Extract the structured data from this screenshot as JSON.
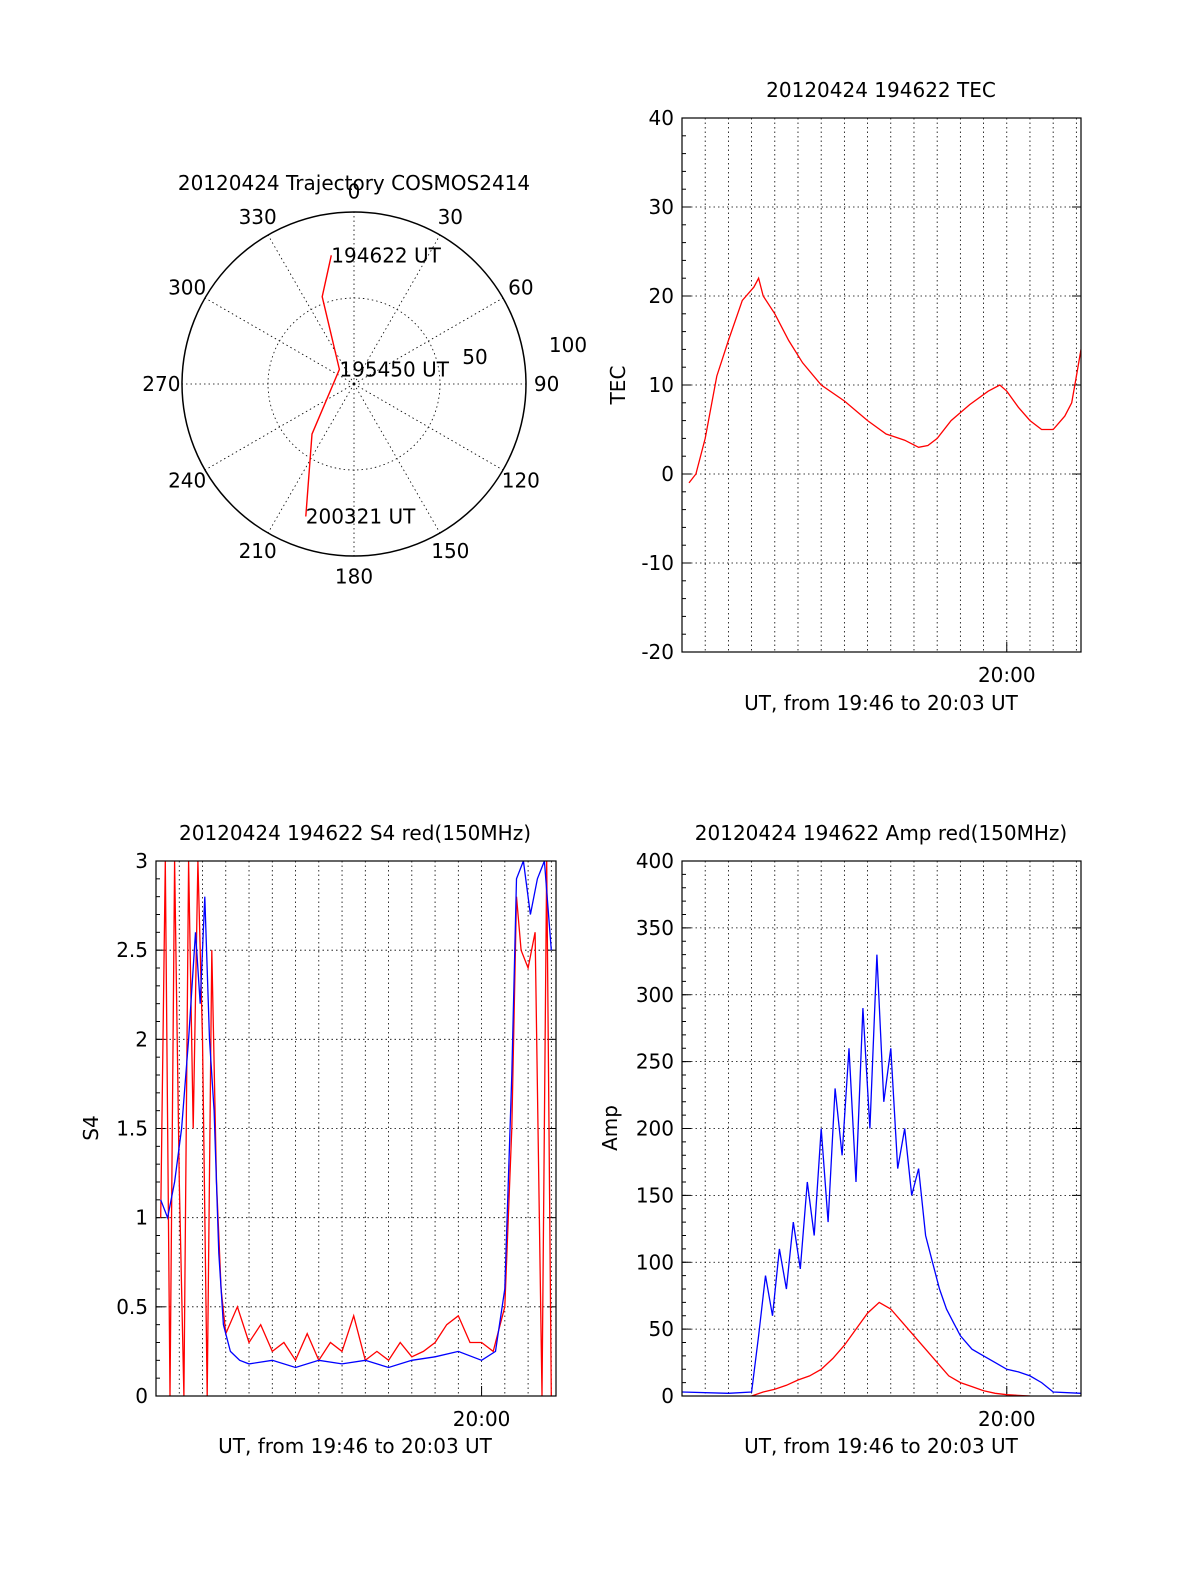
{
  "chart_data": [
    {
      "id": "trajectory",
      "type": "polar",
      "title": "20120424 Trajectory COSMOS2414",
      "azimuth_labels": [
        "0",
        "30",
        "60",
        "90",
        "120",
        "150",
        "180",
        "210",
        "240",
        "270",
        "300",
        "330"
      ],
      "radial_labels": [
        "50",
        "100"
      ],
      "series": [
        {
          "color": "#ff0000",
          "points": [
            [
              -10,
              76
            ],
            [
              -20,
              54
            ],
            [
              -45,
              12
            ],
            [
              -140,
              38
            ],
            [
              -160,
              82
            ]
          ]
        }
      ],
      "annotations": [
        {
          "text": "194622 UT",
          "az": -10,
          "zen": 76
        },
        {
          "text": "195450 UT",
          "az": -45,
          "zen": 12
        },
        {
          "text": "200321 UT",
          "az": -160,
          "zen": 82
        }
      ]
    },
    {
      "id": "tec",
      "type": "line",
      "title": "20120424 194622 TEC",
      "xlabel": "UT, from 19:46 to 20:03 UT",
      "ylabel": "TEC",
      "xlim": [
        0,
        17.2
      ],
      "ylim": [
        -20,
        40
      ],
      "yticks": [
        -20,
        -10,
        0,
        10,
        20,
        30,
        40
      ],
      "xtick_labels": [
        {
          "x": 14,
          "label": "20:00"
        }
      ],
      "series": [
        {
          "color": "#ff0000",
          "points": [
            [
              0.3,
              -1
            ],
            [
              0.6,
              0
            ],
            [
              1.0,
              4
            ],
            [
              1.5,
              11
            ],
            [
              2.0,
              15
            ],
            [
              2.6,
              19.5
            ],
            [
              3.1,
              21
            ],
            [
              3.3,
              22
            ],
            [
              3.5,
              20
            ],
            [
              4.0,
              18
            ],
            [
              4.6,
              15
            ],
            [
              5.2,
              12.5
            ],
            [
              6.0,
              10
            ],
            [
              7.0,
              8.2
            ],
            [
              8.0,
              6
            ],
            [
              8.8,
              4.5
            ],
            [
              9.6,
              3.8
            ],
            [
              10.2,
              3
            ],
            [
              10.6,
              3.2
            ],
            [
              11.0,
              4
            ],
            [
              11.6,
              6
            ],
            [
              12.4,
              7.8
            ],
            [
              13.2,
              9.3
            ],
            [
              13.7,
              10
            ],
            [
              14.0,
              9.3
            ],
            [
              14.5,
              7.5
            ],
            [
              15.0,
              6
            ],
            [
              15.5,
              5
            ],
            [
              16.0,
              5
            ],
            [
              16.5,
              6.5
            ],
            [
              16.8,
              8
            ],
            [
              17.0,
              11
            ],
            [
              17.2,
              14
            ]
          ]
        }
      ]
    },
    {
      "id": "s4",
      "type": "line",
      "title": "20120424 194622 S4 red(150MHz)",
      "xlabel": "UT, from 19:46 to 20:03 UT",
      "ylabel": "S4",
      "xlim": [
        0,
        17.2
      ],
      "ylim": [
        0,
        3
      ],
      "yticks": [
        0,
        0.5,
        1,
        1.5,
        2,
        2.5,
        3
      ],
      "xtick_labels": [
        {
          "x": 14,
          "label": "20:00"
        }
      ],
      "series": [
        {
          "color": "#ff0000",
          "points": [
            [
              0.2,
              1.0
            ],
            [
              0.4,
              3
            ],
            [
              0.6,
              0
            ],
            [
              0.8,
              3
            ],
            [
              1.0,
              1.2
            ],
            [
              1.2,
              0
            ],
            [
              1.4,
              3
            ],
            [
              1.6,
              1.5
            ],
            [
              1.8,
              3
            ],
            [
              2.0,
              2.0
            ],
            [
              2.2,
              0
            ],
            [
              2.4,
              2.5
            ],
            [
              2.6,
              1.2
            ],
            [
              2.8,
              0.6
            ],
            [
              3.0,
              0.35
            ],
            [
              3.5,
              0.5
            ],
            [
              4.0,
              0.3
            ],
            [
              4.5,
              0.4
            ],
            [
              5.0,
              0.25
            ],
            [
              5.5,
              0.3
            ],
            [
              6.0,
              0.2
            ],
            [
              6.5,
              0.35
            ],
            [
              7.0,
              0.2
            ],
            [
              7.5,
              0.3
            ],
            [
              8.0,
              0.25
            ],
            [
              8.5,
              0.45
            ],
            [
              9.0,
              0.2
            ],
            [
              9.5,
              0.25
            ],
            [
              10.0,
              0.2
            ],
            [
              10.5,
              0.3
            ],
            [
              11.0,
              0.22
            ],
            [
              11.5,
              0.25
            ],
            [
              12.0,
              0.3
            ],
            [
              12.5,
              0.4
            ],
            [
              13.0,
              0.45
            ],
            [
              13.5,
              0.3
            ],
            [
              14.0,
              0.3
            ],
            [
              14.5,
              0.25
            ],
            [
              15.0,
              0.5
            ],
            [
              15.3,
              1.5
            ],
            [
              15.5,
              2.8
            ],
            [
              15.7,
              2.5
            ],
            [
              16.0,
              2.4
            ],
            [
              16.3,
              2.6
            ],
            [
              16.6,
              0
            ],
            [
              16.8,
              3
            ],
            [
              17.0,
              0
            ]
          ]
        },
        {
          "color": "#0000ff",
          "points": [
            [
              0.2,
              1.1
            ],
            [
              0.5,
              1.0
            ],
            [
              0.8,
              1.2
            ],
            [
              1.1,
              1.5
            ],
            [
              1.4,
              2.0
            ],
            [
              1.7,
              2.6
            ],
            [
              1.9,
              2.2
            ],
            [
              2.1,
              2.8
            ],
            [
              2.3,
              2.0
            ],
            [
              2.5,
              1.6
            ],
            [
              2.7,
              0.8
            ],
            [
              2.9,
              0.4
            ],
            [
              3.2,
              0.25
            ],
            [
              3.6,
              0.2
            ],
            [
              4.0,
              0.18
            ],
            [
              5.0,
              0.2
            ],
            [
              6.0,
              0.16
            ],
            [
              7.0,
              0.2
            ],
            [
              8.0,
              0.18
            ],
            [
              9.0,
              0.2
            ],
            [
              10.0,
              0.16
            ],
            [
              11.0,
              0.2
            ],
            [
              12.0,
              0.22
            ],
            [
              13.0,
              0.25
            ],
            [
              14.0,
              0.2
            ],
            [
              14.6,
              0.25
            ],
            [
              15.0,
              0.6
            ],
            [
              15.3,
              1.8
            ],
            [
              15.5,
              2.9
            ],
            [
              15.8,
              3
            ],
            [
              16.1,
              2.7
            ],
            [
              16.4,
              2.9
            ],
            [
              16.7,
              3
            ],
            [
              17.0,
              2.5
            ]
          ]
        }
      ]
    },
    {
      "id": "amp",
      "type": "line",
      "title": "20120424 194622 Amp red(150MHz)",
      "xlabel": "UT, from 19:46 to 20:03 UT",
      "ylabel": "Amp",
      "xlim": [
        0,
        17.2
      ],
      "ylim": [
        0,
        400
      ],
      "yticks": [
        0,
        50,
        100,
        150,
        200,
        250,
        300,
        350,
        400
      ],
      "xtick_labels": [
        {
          "x": 14,
          "label": "20:00"
        }
      ],
      "series": [
        {
          "color": "#0000ff",
          "points": [
            [
              0.0,
              3
            ],
            [
              2.0,
              2
            ],
            [
              3.0,
              3
            ],
            [
              3.3,
              45
            ],
            [
              3.6,
              90
            ],
            [
              3.9,
              60
            ],
            [
              4.2,
              110
            ],
            [
              4.5,
              80
            ],
            [
              4.8,
              130
            ],
            [
              5.1,
              95
            ],
            [
              5.4,
              160
            ],
            [
              5.7,
              120
            ],
            [
              6.0,
              200
            ],
            [
              6.3,
              130
            ],
            [
              6.6,
              230
            ],
            [
              6.9,
              180
            ],
            [
              7.2,
              260
            ],
            [
              7.5,
              160
            ],
            [
              7.8,
              290
            ],
            [
              8.1,
              200
            ],
            [
              8.4,
              330
            ],
            [
              8.7,
              220
            ],
            [
              9.0,
              260
            ],
            [
              9.3,
              170
            ],
            [
              9.6,
              200
            ],
            [
              9.9,
              150
            ],
            [
              10.2,
              170
            ],
            [
              10.5,
              120
            ],
            [
              10.8,
              100
            ],
            [
              11.1,
              80
            ],
            [
              11.4,
              65
            ],
            [
              11.7,
              55
            ],
            [
              12.0,
              45
            ],
            [
              12.5,
              35
            ],
            [
              13.0,
              30
            ],
            [
              13.5,
              25
            ],
            [
              14.0,
              20
            ],
            [
              14.5,
              18
            ],
            [
              15.0,
              15
            ],
            [
              15.5,
              10
            ],
            [
              16.0,
              3
            ],
            [
              17.2,
              2
            ]
          ]
        },
        {
          "color": "#ff0000",
          "points": [
            [
              3.0,
              0
            ],
            [
              3.5,
              3
            ],
            [
              4.0,
              5
            ],
            [
              4.5,
              8
            ],
            [
              5.0,
              12
            ],
            [
              5.5,
              15
            ],
            [
              6.0,
              20
            ],
            [
              6.5,
              28
            ],
            [
              7.0,
              38
            ],
            [
              7.5,
              50
            ],
            [
              8.0,
              62
            ],
            [
              8.5,
              70
            ],
            [
              9.0,
              65
            ],
            [
              9.5,
              55
            ],
            [
              10.0,
              45
            ],
            [
              10.5,
              35
            ],
            [
              11.0,
              25
            ],
            [
              11.5,
              15
            ],
            [
              12.0,
              10
            ],
            [
              12.5,
              7
            ],
            [
              13.0,
              4
            ],
            [
              13.5,
              2
            ],
            [
              14.0,
              1
            ],
            [
              15.0,
              0
            ]
          ]
        }
      ]
    }
  ]
}
